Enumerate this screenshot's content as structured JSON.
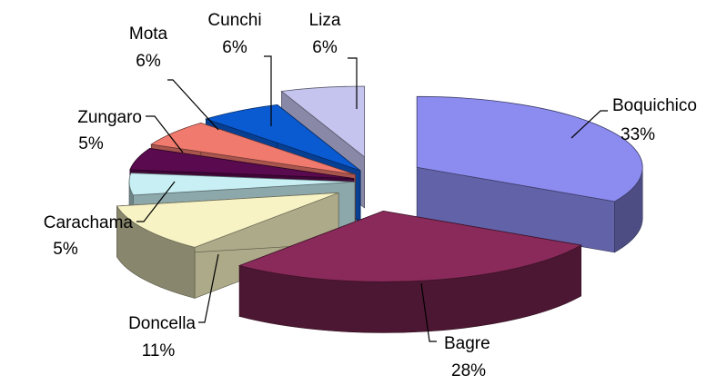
{
  "chart_data": {
    "type": "pie",
    "style": "3d-exploded",
    "legend": "none",
    "slices": [
      {
        "label": "Boquichico",
        "value": 33,
        "display": "33%",
        "color": "#8c8cf0"
      },
      {
        "label": "Bagre",
        "value": 28,
        "display": "28%",
        "color": "#8a2a5a"
      },
      {
        "label": "Doncella",
        "value": 11,
        "display": "11%",
        "color": "#f7f3c4"
      },
      {
        "label": "Carachama",
        "value": 5,
        "display": "5%",
        "color": "#c8f0f4"
      },
      {
        "label": "Zungaro",
        "value": 5,
        "display": "5%",
        "color": "#5a0a4e"
      },
      {
        "label": "Mota",
        "value": 6,
        "display": "6%",
        "color": "#f07a6e"
      },
      {
        "label": "Cunchi",
        "value": 6,
        "display": "6%",
        "color": "#0a5ad2"
      },
      {
        "label": "Liza",
        "value": 6,
        "display": "6%",
        "color": "#c4c4ee"
      }
    ]
  }
}
